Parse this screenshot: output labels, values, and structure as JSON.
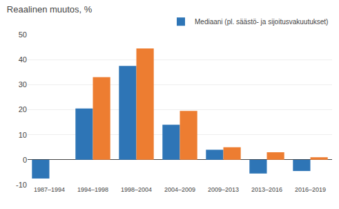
{
  "chart_data": {
    "type": "bar",
    "title": "Reaalinen muutos, %",
    "categories": [
      "1987–1994",
      "1994–1998",
      "1998–2004",
      "2004–2009",
      "2009–2013",
      "2013–2016",
      "2016–2019"
    ],
    "series": [
      {
        "name": "Mediaani (pl. säästö- ja sijoitusvakuutukset)",
        "color": "#2E75B6",
        "values": [
          -7.5,
          20.5,
          37.5,
          14.0,
          4.0,
          -5.5,
          -4.5
        ]
      },
      {
        "color": "#ED7D31",
        "values": [
          null,
          33.0,
          44.5,
          19.5,
          5.0,
          3.0,
          1.0
        ]
      }
    ],
    "ylim": [
      -10,
      50
    ],
    "yticks": [
      -10,
      0,
      10,
      20,
      30,
      40,
      50
    ],
    "grid": true,
    "legend": "upper right"
  }
}
